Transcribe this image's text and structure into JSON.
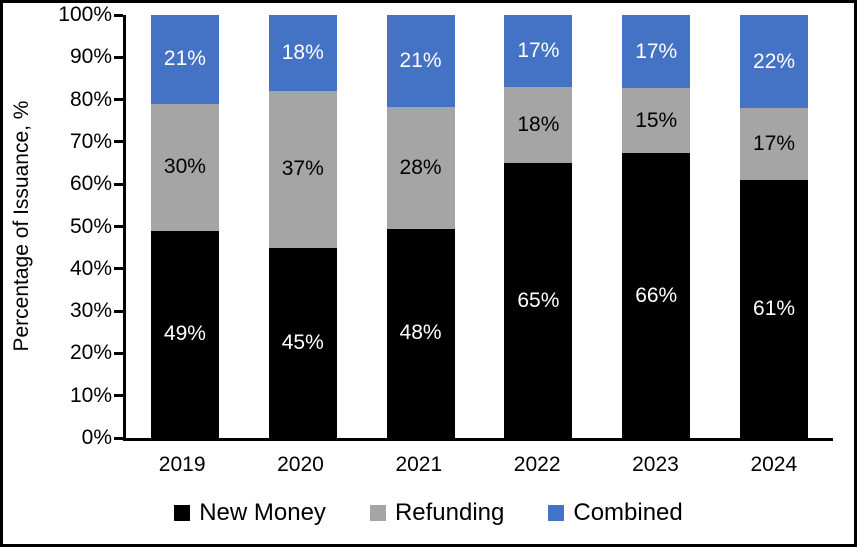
{
  "chart_data": {
    "type": "bar",
    "stacked": true,
    "stacked_to_100": true,
    "title": "",
    "xlabel": "",
    "ylabel": "Percentage of Issuance, %",
    "categories": [
      "2019",
      "2020",
      "2021",
      "2022",
      "2023",
      "2024"
    ],
    "series": [
      {
        "name": "New Money",
        "color": "#000000",
        "label_color": "#ffffff",
        "values": [
          49,
          45,
          48,
          65,
          66,
          61
        ]
      },
      {
        "name": "Refunding",
        "color": "#A5A5A5",
        "label_color": "#000000",
        "values": [
          30,
          37,
          28,
          18,
          15,
          17
        ]
      },
      {
        "name": "Combined",
        "color": "#4472C4",
        "label_color": "#ffffff",
        "values": [
          21,
          18,
          21,
          17,
          17,
          22
        ]
      }
    ],
    "value_suffix": "%",
    "y_axis": {
      "ylim": [
        0,
        100
      ],
      "tick_step": 10,
      "ticks": [
        0,
        10,
        20,
        30,
        40,
        50,
        60,
        70,
        80,
        90,
        100
      ],
      "tick_suffix": "%"
    },
    "grid": false,
    "legend_position": "bottom"
  }
}
